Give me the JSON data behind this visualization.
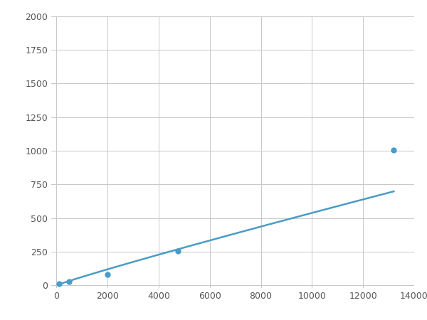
{
  "x_points": [
    100,
    500,
    2000,
    4750,
    13200
  ],
  "y_points": [
    10,
    25,
    80,
    255,
    1005
  ],
  "line_color": "#4a9cc7",
  "marker_color": "#4a9cc7",
  "marker_size": 6,
  "line_width": 1.8,
  "xlim": [
    -200,
    14000
  ],
  "ylim": [
    -20,
    2000
  ],
  "xticks": [
    0,
    2000,
    4000,
    6000,
    8000,
    10000,
    12000,
    14000
  ],
  "yticks": [
    0,
    250,
    500,
    750,
    1000,
    1250,
    1500,
    1750,
    2000
  ],
  "grid_color": "#c8c8c8",
  "background_color": "#ffffff",
  "fig_width": 6.0,
  "fig_height": 4.5,
  "dpi": 100
}
